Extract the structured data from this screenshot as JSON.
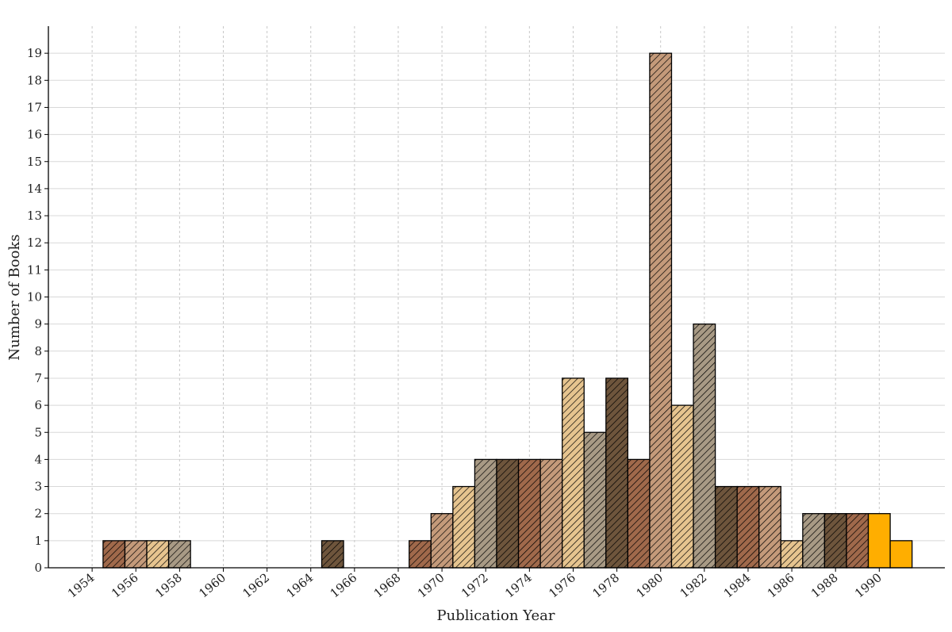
{
  "chart_data": {
    "type": "bar",
    "title": "",
    "xlabel": "Publication Year",
    "ylabel": "Number of Books",
    "x": [
      1955,
      1956,
      1957,
      1958,
      1965,
      1969,
      1970,
      1971,
      1972,
      1973,
      1974,
      1975,
      1976,
      1977,
      1978,
      1979,
      1980,
      1981,
      1982,
      1983,
      1984,
      1985,
      1986,
      1987,
      1988,
      1989,
      1990,
      1991
    ],
    "values": [
      1,
      1,
      1,
      1,
      1,
      1,
      2,
      3,
      4,
      4,
      4,
      4,
      7,
      5,
      7,
      4,
      19,
      6,
      9,
      3,
      3,
      3,
      1,
      2,
      2,
      2,
      2,
      1
    ],
    "xlim": [
      1952,
      1993
    ],
    "ylim": [
      0,
      20
    ],
    "x_ticks": [
      "1954",
      "1956",
      "1958",
      "1960",
      "1962",
      "1964",
      "1966",
      "1968",
      "1970",
      "1972",
      "1974",
      "1976",
      "1978",
      "1980",
      "1982",
      "1984",
      "1986",
      "1988",
      "1990"
    ],
    "y_ticks": [
      "0",
      "1",
      "2",
      "3",
      "4",
      "5",
      "6",
      "7",
      "8",
      "9",
      "10",
      "11",
      "12",
      "13",
      "14",
      "15",
      "16",
      "17",
      "18",
      "19"
    ],
    "grid": true,
    "hatch": "diagonal",
    "palette": [
      "#a0694b",
      "#c49a7a",
      "#e6c48f",
      "#a89a85",
      "#6e553c"
    ],
    "highlight_color": "#ffae00",
    "highlight_x": [
      1990,
      1991
    ]
  }
}
